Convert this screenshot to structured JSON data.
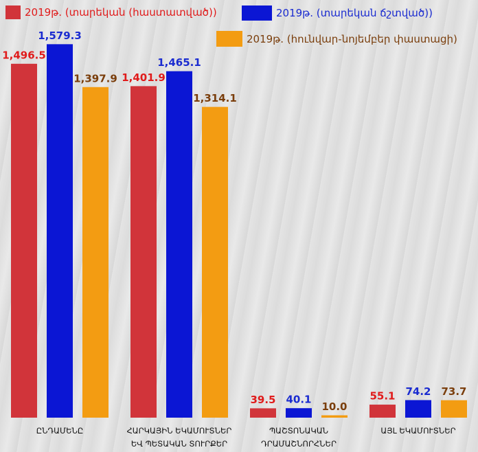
{
  "chart_data": {
    "type": "bar",
    "categories": [
      "ԸՆԴԱՄԵՆԸ",
      "ՀԱՐԿԱՅԻՆ ԵԿԱՄՈՒՏՆԵՐ ԵՎ ՊԵՏԱԿԱՆ ՏՈՒՐՔԵՐ",
      "ՊԱՇՏՈՆԱԿԱՆ ԴՐԱՄԱՇՆՈՐՀՆԵՐ",
      "ԱՅԼ ԵԿԱՄՈՒՏՆԵՐ"
    ],
    "series": [
      {
        "name": "2019թ. (տարեկան (հաստատված))",
        "color": "#d1343a",
        "label_color": "#e01b1b",
        "values": [
          1496.5,
          1401.9,
          39.5,
          55.1
        ],
        "value_labels": [
          "1,496.5",
          "1,401.9",
          "39.5",
          "55.1"
        ]
      },
      {
        "name": "2019թ. (տարեկան ճշտված))",
        "color": "#0b16d4",
        "label_color": "#1a2bd0",
        "values": [
          1579.3,
          1465.1,
          40.1,
          74.2
        ],
        "value_labels": [
          "1,579.3",
          "1,465.1",
          "40.1",
          "74.2"
        ]
      },
      {
        "name": "2019թ. (հունվար-նոյեմբեր փաստացի)",
        "color": "#f39c12",
        "label_color": "#7a3e0c",
        "values": [
          1397.9,
          1314.1,
          10.0,
          73.7
        ],
        "value_labels": [
          "1,397.9",
          "1,314.1",
          "10.0",
          "73.7"
        ]
      }
    ],
    "ylim": [
      0,
      1650
    ]
  }
}
